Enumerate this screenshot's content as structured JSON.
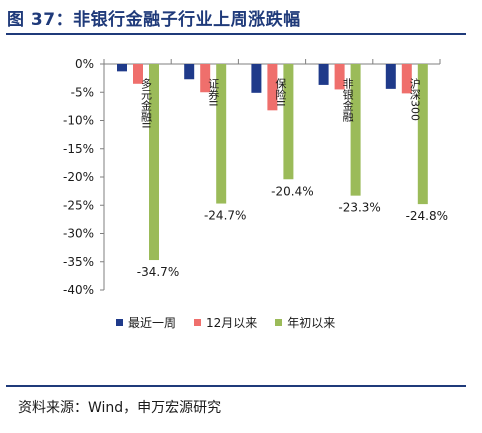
{
  "header": {
    "title": "图 37：非银行金融子行业上周涨跌幅"
  },
  "footer": {
    "source": "资料来源：Wind，申万宏源研究"
  },
  "colors": {
    "weekly": "#1f3a8a",
    "since_dec": "#ef6f6c",
    "ytd": "#9bbb59",
    "title": "#1f3a7a"
  },
  "chart_data": {
    "type": "bar",
    "categories": [
      "多元金融II",
      "证券II",
      "保险II",
      "非银金融",
      "沪深300"
    ],
    "series": [
      {
        "name": "最近一周",
        "values": [
          -1.3,
          -2.7,
          -5.1,
          -3.7,
          -4.4
        ]
      },
      {
        "name": "12月以来",
        "values": [
          -3.5,
          -5.0,
          -8.2,
          -4.5,
          -5.2
        ]
      },
      {
        "name": "年初以来",
        "values": [
          -34.7,
          -24.7,
          -20.4,
          -23.3,
          -24.8
        ]
      }
    ],
    "data_labels": [
      "-34.7%",
      "-24.7%",
      "-20.4%",
      "-23.3%",
      "-24.8%"
    ],
    "y_ticks": [
      "0%",
      "-5%",
      "-10%",
      "-15%",
      "-20%",
      "-25%",
      "-30%",
      "-35%",
      "-40%"
    ],
    "ylim": [
      -40,
      0
    ],
    "legend_position": "bottom",
    "grid": false
  }
}
